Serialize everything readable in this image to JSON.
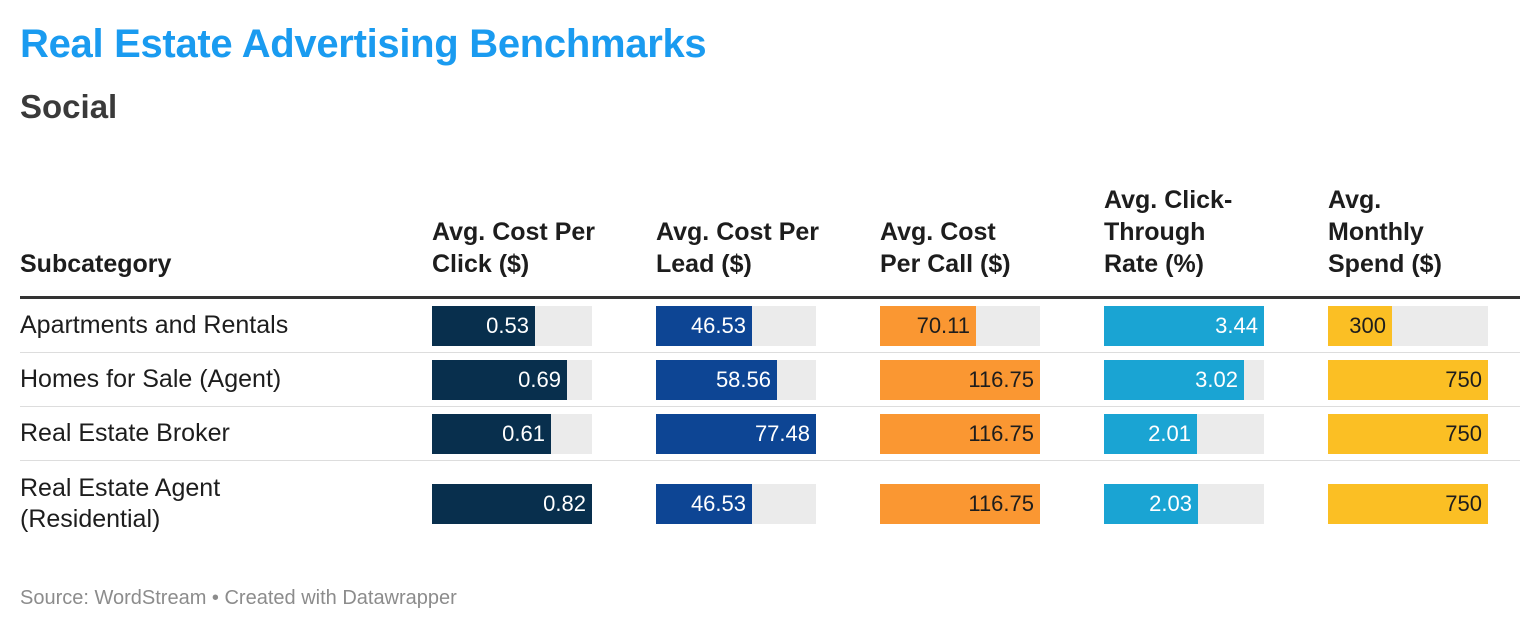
{
  "title": "Real Estate Advertising Benchmarks",
  "subtitle": "Social",
  "source": "Source: WordStream • Created with Datawrapper",
  "chart_data": {
    "type": "table",
    "title": "Real Estate Advertising Benchmarks",
    "subtitle": "Social",
    "columns": [
      {
        "label": "Subcategory"
      },
      {
        "label": "Avg. Cost Per Click ($)",
        "color": "#082f4d",
        "text_color": "#ffffff",
        "max": 0.82
      },
      {
        "label": "Avg. Cost Per Lead ($)",
        "color": "#0d4594",
        "text_color": "#ffffff",
        "max": 77.48
      },
      {
        "label": "Avg. Cost Per Call ($)",
        "color": "#fa9732",
        "text_color": "#1d1d1d",
        "max": 116.75
      },
      {
        "label": "Avg. Click-Through Rate (%)",
        "color": "#1aa4d3",
        "text_color": "#ffffff",
        "max": 3.44
      },
      {
        "label": "Avg. Monthly Spend ($)",
        "color": "#fbbf24",
        "text_color": "#1d1d1d",
        "max": 750
      }
    ],
    "rows": [
      {
        "subcategory": "Apartments and Rentals",
        "values": [
          "0.53",
          "46.53",
          "70.11",
          "3.44",
          "300"
        ]
      },
      {
        "subcategory": "Homes for Sale (Agent)",
        "values": [
          "0.69",
          "58.56",
          "116.75",
          "3.02",
          "750"
        ]
      },
      {
        "subcategory": "Real Estate Broker",
        "values": [
          "0.61",
          "77.48",
          "116.75",
          "2.01",
          "750"
        ]
      },
      {
        "subcategory": "Real Estate Agent (Residential)",
        "values": [
          "0.82",
          "46.53",
          "116.75",
          "2.03",
          "750"
        ]
      }
    ]
  }
}
